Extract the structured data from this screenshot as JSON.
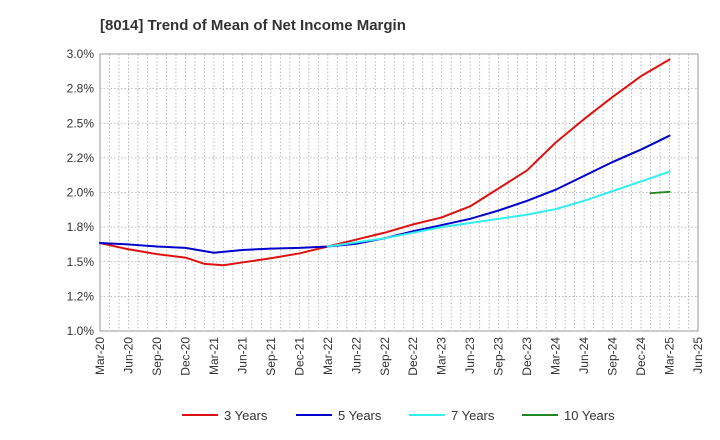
{
  "chart_data": {
    "type": "line",
    "title": "[8014]  Trend of Mean of Net Income Margin",
    "xlabel": "",
    "ylabel": "",
    "grid": true,
    "legend_position": "bottom",
    "x_ticks": [
      "Mar-20",
      "Jun-20",
      "Sep-20",
      "Dec-20",
      "Mar-21",
      "Jun-21",
      "Sep-21",
      "Dec-21",
      "Mar-22",
      "Jun-22",
      "Sep-22",
      "Dec-22",
      "Mar-23",
      "Jun-23",
      "Sep-23",
      "Dec-23",
      "Mar-24",
      "Jun-24",
      "Sep-24",
      "Dec-24",
      "Mar-25",
      "Jun-25"
    ],
    "y_ticks": [
      "3.0%",
      "2.8%",
      "2.5%",
      "2.2%",
      "2.0%",
      "1.8%",
      "1.5%",
      "1.2%",
      "1.0%"
    ],
    "ylim": [
      1.0,
      3.0
    ],
    "series": [
      {
        "name": "3 Years",
        "color": "#dd1111",
        "x": [
          "Mar-20",
          "Jun-20",
          "Sep-20",
          "Dec-20",
          "Feb-21",
          "Apr-21",
          "Jun-21",
          "Sep-21",
          "Dec-21",
          "Mar-22",
          "Jun-22",
          "Sep-22",
          "Dec-22",
          "Mar-23",
          "Jun-23",
          "Sep-23",
          "Dec-23",
          "Mar-24",
          "Jun-24",
          "Sep-24",
          "Dec-24",
          "Mar-25"
        ],
        "values": [
          1.635,
          1.59,
          1.555,
          1.53,
          1.485,
          1.475,
          1.495,
          1.525,
          1.56,
          1.61,
          1.66,
          1.71,
          1.77,
          1.82,
          1.9,
          2.03,
          2.16,
          2.36,
          2.53,
          2.69,
          2.84,
          2.96
        ]
      },
      {
        "name": "5 Years",
        "color": "#0000cc",
        "x": [
          "Mar-20",
          "Jun-20",
          "Sep-20",
          "Dec-20",
          "Mar-21",
          "Jun-21",
          "Sep-21",
          "Dec-21",
          "Mar-22",
          "Jun-22",
          "Sep-22",
          "Dec-22",
          "Mar-23",
          "Jun-23",
          "Sep-23",
          "Dec-23",
          "Mar-24",
          "Jun-24",
          "Sep-24",
          "Dec-24",
          "Mar-25"
        ],
        "values": [
          1.635,
          1.625,
          1.61,
          1.6,
          1.565,
          1.585,
          1.595,
          1.6,
          1.61,
          1.63,
          1.67,
          1.72,
          1.765,
          1.81,
          1.87,
          1.94,
          2.02,
          2.12,
          2.22,
          2.31,
          2.41
        ]
      },
      {
        "name": "7 Years",
        "color": "#33eeee",
        "x": [
          "Mar-22",
          "Jun-22",
          "Sep-22",
          "Dec-22",
          "Mar-23",
          "Jun-23",
          "Sep-23",
          "Dec-23",
          "Mar-24",
          "Jun-24",
          "Sep-24",
          "Dec-24",
          "Mar-25"
        ],
        "values": [
          1.61,
          1.64,
          1.67,
          1.71,
          1.75,
          1.78,
          1.81,
          1.84,
          1.88,
          1.94,
          2.01,
          2.08,
          2.15
        ]
      },
      {
        "name": "10 Years",
        "color": "#228822",
        "x": [
          "Jan-25",
          "Mar-25"
        ],
        "values": [
          1.995,
          2.005
        ]
      }
    ]
  }
}
